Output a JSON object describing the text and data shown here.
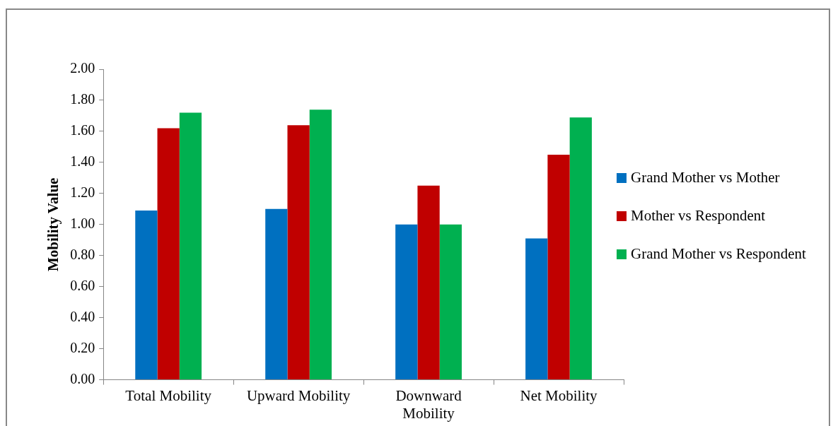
{
  "chart_data": {
    "type": "bar",
    "ylabel": "Mobility Value",
    "categories": [
      "Total Mobility",
      "Upward Mobility",
      "Downward Mobility",
      "Net Mobility"
    ],
    "series": [
      {
        "name": "Grand Mother vs Mother",
        "color": "#0070c0",
        "values": [
          1.09,
          1.1,
          1.0,
          0.91
        ]
      },
      {
        "name": "Mother vs Respondent",
        "color": "#c00000",
        "values": [
          1.62,
          1.64,
          1.25,
          1.45
        ]
      },
      {
        "name": "Grand Mother vs Respondent",
        "color": "#00b050",
        "values": [
          1.72,
          1.74,
          1.0,
          1.69
        ]
      }
    ],
    "ylim": [
      0,
      2
    ],
    "yticks": [
      {
        "value": 0,
        "label": "0.00"
      },
      {
        "value": 0.2,
        "label": "0.20"
      },
      {
        "value": 0.4,
        "label": "0.40"
      },
      {
        "value": 0.6,
        "label": "0.60"
      },
      {
        "value": 0.8,
        "label": "0.80"
      },
      {
        "value": 1,
        "label": "1.00"
      },
      {
        "value": 1.2,
        "label": "1.20"
      },
      {
        "value": 1.4,
        "label": "1.40"
      },
      {
        "value": 1.6,
        "label": "1.60"
      },
      {
        "value": 1.8,
        "label": "1.80"
      },
      {
        "value": 2,
        "label": "2.00"
      }
    ],
    "grid": false,
    "legend": "right"
  }
}
